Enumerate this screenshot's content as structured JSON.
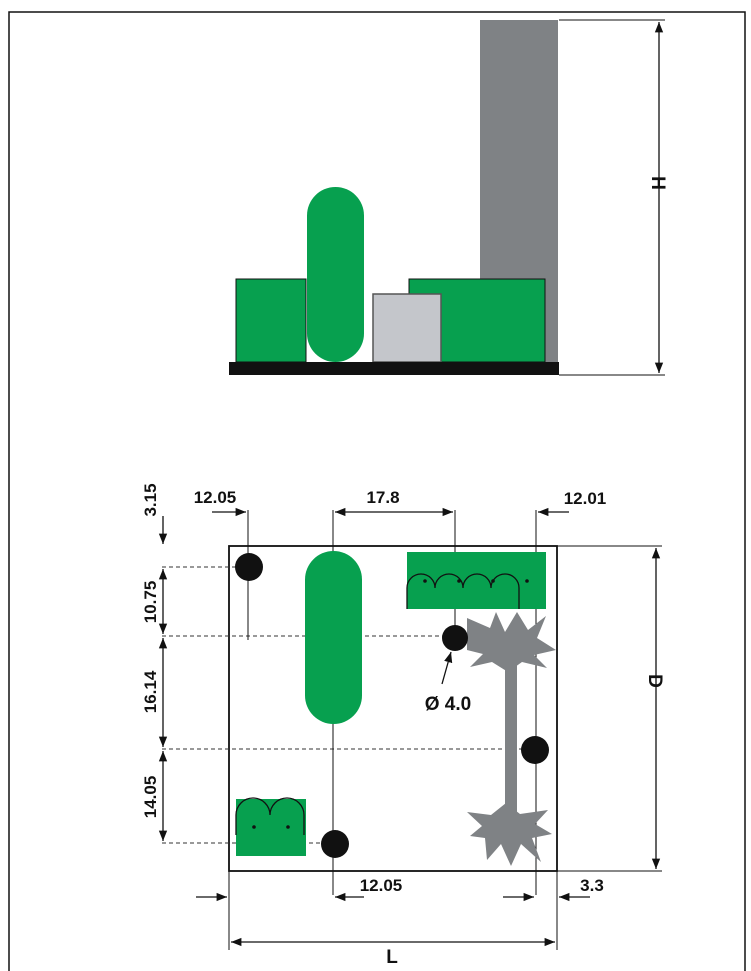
{
  "colors": {
    "component_green": "#07a04f",
    "heatsink_gray": "#7f8285",
    "relay_gray": "#c4c6cb",
    "pcb_black": "#111111",
    "outline": "#111111"
  },
  "side_view": {
    "height_label": "H"
  },
  "top_view": {
    "depth_label": "D",
    "length_label": "L",
    "hole_diameter_label": "Ø 4.0",
    "dims": {
      "top_offset": "3.15",
      "left_hole_x": "12.05",
      "hole_spacing_top": "17.8",
      "right_hole_x": "12.01",
      "v_spacing_1": "10.75",
      "v_spacing_2": "16.14",
      "v_spacing_3": "14.05",
      "bottom_hole_x": "12.05",
      "right_edge": "3.3"
    }
  }
}
